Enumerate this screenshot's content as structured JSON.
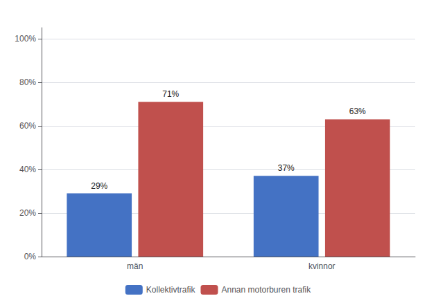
{
  "chart_data": {
    "type": "bar",
    "categories": [
      "män",
      "kvinnor"
    ],
    "series": [
      {
        "name": "Kollektivtrafik",
        "color": "#4472C4",
        "values": [
          0.29,
          0.37
        ],
        "value_labels": [
          "29%",
          "37%"
        ]
      },
      {
        "name": "Annan motorburen trafik",
        "color": "#C0504D",
        "values": [
          0.71,
          0.63
        ],
        "value_labels": [
          "71%",
          "63%"
        ]
      }
    ],
    "ylim": [
      0,
      1.05
    ],
    "yticks": [
      {
        "value": 0,
        "label": "0%"
      },
      {
        "value": 0.2,
        "label": "20%"
      },
      {
        "value": 0.4,
        "label": "40%"
      },
      {
        "value": 0.6,
        "label": "60%"
      },
      {
        "value": 0.8,
        "label": "80%"
      },
      {
        "value": 1.0,
        "label": "100%"
      }
    ],
    "grid": true,
    "legend": "bottom",
    "data_labels": true
  }
}
